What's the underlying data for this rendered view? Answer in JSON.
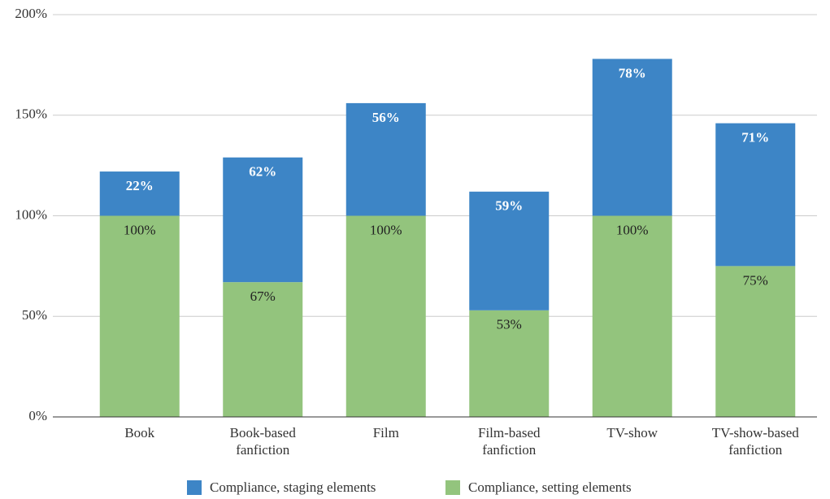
{
  "chart_data": {
    "type": "bar",
    "stacked": true,
    "categories": [
      "Book",
      "Book-based fanfiction",
      "Film",
      "Film-based fanfiction",
      "TV-show",
      "TV-show-based fanfiction"
    ],
    "series": [
      {
        "name": "Compliance, staging elements",
        "color": "#3d85c6",
        "values": [
          22,
          62,
          56,
          59,
          78,
          71
        ],
        "value_labels": [
          "22%",
          "62%",
          "56%",
          "59%",
          "78%",
          "71%"
        ]
      },
      {
        "name": "Compliance, setting elements",
        "color": "#93c47d",
        "values": [
          100,
          67,
          100,
          53,
          100,
          75
        ],
        "value_labels": [
          "100%",
          "67%",
          "100%",
          "53%",
          "100%",
          "75%"
        ]
      }
    ],
    "ylim": [
      0,
      200
    ],
    "yticks": [
      {
        "value": 0,
        "label": "0%"
      },
      {
        "value": 50,
        "label": "50%"
      },
      {
        "value": 100,
        "label": "100%"
      },
      {
        "value": 150,
        "label": "150%"
      },
      {
        "value": 200,
        "label": "200%"
      }
    ],
    "grid": true,
    "legend": "bottom"
  }
}
